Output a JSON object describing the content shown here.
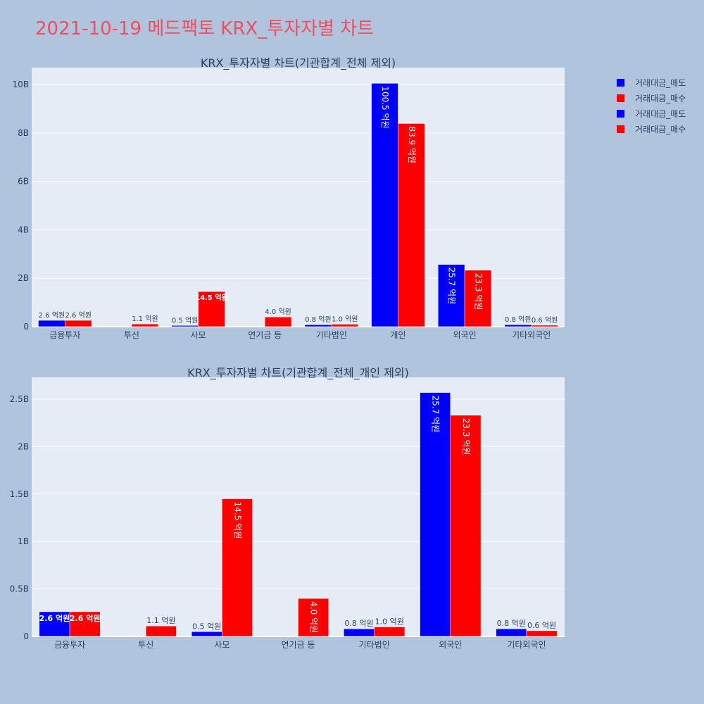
{
  "page": {
    "title": "2021-10-19 메드팩토 KRX_투자자별 차트"
  },
  "legend": [
    {
      "label": "거래대금_매도",
      "color": "#0000ff"
    },
    {
      "label": "거래대금_매수",
      "color": "#ff0000"
    },
    {
      "label": "거래대금_매도",
      "color": "#0000ff"
    },
    {
      "label": "거래대금_매수",
      "color": "#ff0000"
    }
  ],
  "chart_data": [
    {
      "type": "bar",
      "title": "KRX_투자자별 차트(기관합계_전체 제외)",
      "categories": [
        "금융투자",
        "투신",
        "사모",
        "연기금 등",
        "기타법인",
        "개인",
        "외국인",
        "기타외국인"
      ],
      "series": [
        {
          "name": "거래대금_매도",
          "color": "#0000ff",
          "values": [
            260000000,
            0,
            50000000,
            0,
            80000000,
            10050000000,
            2570000000,
            80000000
          ],
          "labels": [
            "2.6 억원",
            "",
            "0.5 억원",
            "",
            "0.8 억원",
            "100.5 억원",
            "25.7 억원",
            "0.8 억원"
          ]
        },
        {
          "name": "거래대금_매수",
          "color": "#ff0000",
          "values": [
            260000000,
            110000000,
            1450000000,
            400000000,
            100000000,
            8390000000,
            2330000000,
            60000000
          ],
          "labels": [
            "2.6 억원",
            "1.1 억원",
            "14.5 억원",
            "4.0 억원",
            "1.0 억원",
            "83.9 억원",
            "23.3 억원",
            "0.6 억원"
          ]
        }
      ],
      "yticks": [
        0,
        2000000000,
        4000000000,
        6000000000,
        8000000000,
        10000000000
      ],
      "ytick_labels": [
        "0",
        "2B",
        "4B",
        "6B",
        "8B",
        "10B"
      ],
      "ylim": [
        0,
        10700000000
      ],
      "grid": true
    },
    {
      "type": "bar",
      "title": "KRX_투자자별 차트(기관합계_전체_개인 제외)",
      "categories": [
        "금융투자",
        "투신",
        "사모",
        "연기금 등",
        "기타법인",
        "외국인",
        "기타외국인"
      ],
      "series": [
        {
          "name": "거래대금_매도",
          "color": "#0000ff",
          "values": [
            260000000,
            0,
            50000000,
            0,
            80000000,
            2570000000,
            80000000
          ],
          "labels": [
            "2.6 억원",
            "",
            "0.5 억원",
            "",
            "0.8 억원",
            "25.7 억원",
            "0.8 억원"
          ]
        },
        {
          "name": "거래대금_매수",
          "color": "#ff0000",
          "values": [
            260000000,
            110000000,
            1450000000,
            400000000,
            100000000,
            2330000000,
            60000000
          ],
          "labels": [
            "2.6 억원",
            "1.1 억원",
            "14.5 억원",
            "4.0 억원",
            "1.0 억원",
            "23.3 억원",
            "0.6 억원"
          ]
        }
      ],
      "yticks": [
        0,
        500000000,
        1000000000,
        1500000000,
        2000000000,
        2500000000
      ],
      "ytick_labels": [
        "0",
        "0.5B",
        "1B",
        "1.5B",
        "2B",
        "2.5B"
      ],
      "ylim": [
        0,
        2730000000
      ],
      "grid": true
    }
  ]
}
